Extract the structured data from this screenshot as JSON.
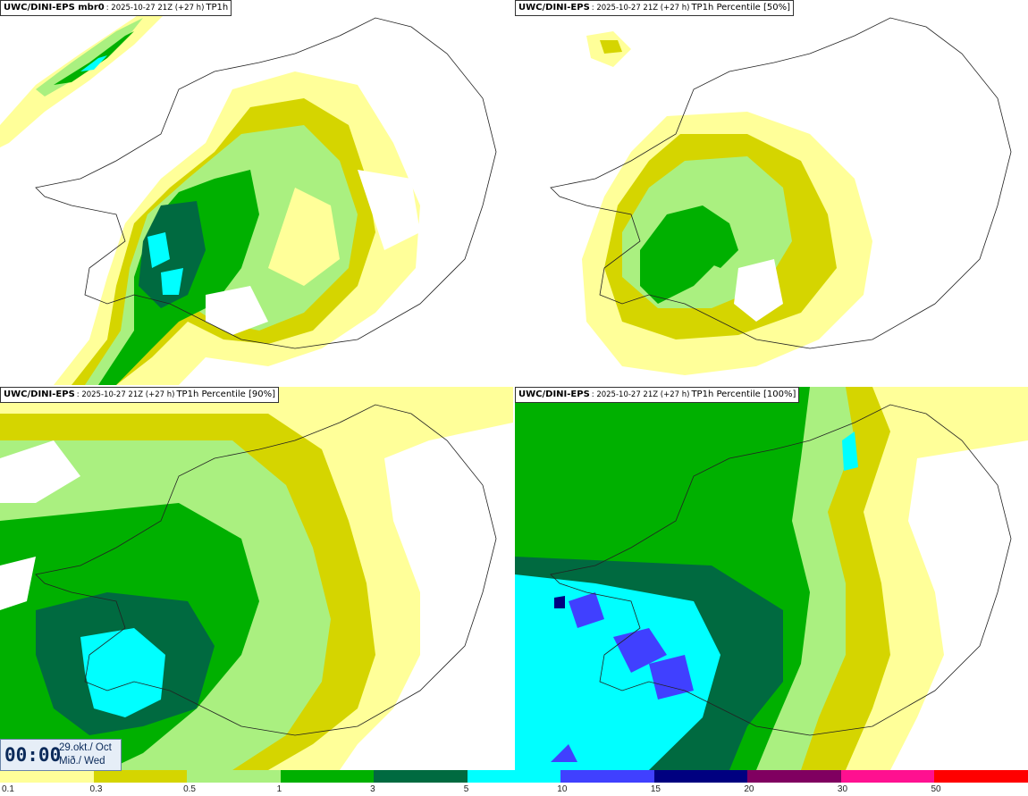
{
  "panels": [
    {
      "model": "UWC/DINI-EPS mbr0",
      "meta": ": 2025-10-27 21Z (+27 h)",
      "field": "TP1h"
    },
    {
      "model": "UWC/DINI-EPS",
      "meta": ": 2025-10-27 21Z (+27 h)",
      "field": "TP1h Percentile [50%]"
    },
    {
      "model": "UWC/DINI-EPS",
      "meta": ": 2025-10-27 21Z (+27 h)",
      "field": "TP1h Percentile [90%]"
    },
    {
      "model": "UWC/DINI-EPS",
      "meta": ": 2025-10-27 21Z (+27 h)",
      "field": "TP1h Percentile [100%]"
    }
  ],
  "time": {
    "clock": "00:00",
    "date": "29.okt./ Oct",
    "weekday": "Mið./ Wed"
  },
  "legend": {
    "labels": [
      "0.1",
      "0.3",
      "0.5",
      "1",
      "3",
      "5",
      "10",
      "15",
      "20",
      "30",
      "50"
    ],
    "colors": [
      "#ffff99",
      "#d5d500",
      "#aaf080",
      "#00b000",
      "#006a40",
      "#00ffff",
      "#4040ff",
      "#000080",
      "#800060",
      "#ff1090",
      "#ff0000"
    ]
  },
  "colors": {
    "l1": "#ffff99",
    "l2": "#d5d500",
    "l3": "#aaf080",
    "l4": "#00b000",
    "l5": "#006a40",
    "l6": "#00ffff",
    "l7": "#4040ff",
    "l8": "#000080"
  }
}
